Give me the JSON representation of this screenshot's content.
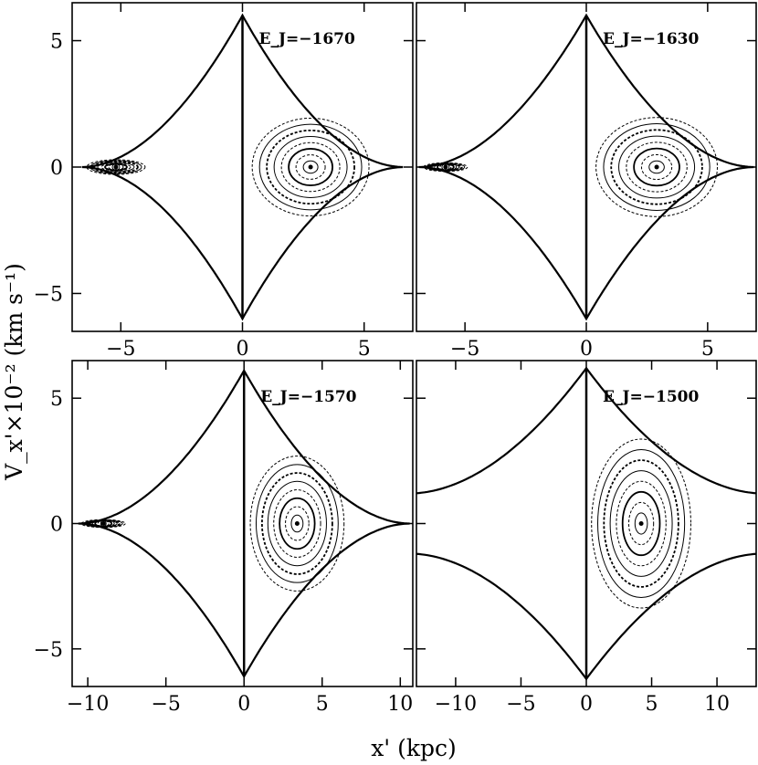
{
  "figure": {
    "ylabel": "V_x'×10⁻² (km s⁻¹)",
    "xlabel": "x' (kpc)"
  },
  "chart_data": [
    {
      "type": "scatter",
      "panel": "top-left",
      "annotation": "E_J=−1670",
      "xlim": [
        -7.0,
        7.0
      ],
      "ylim": [
        -6.5,
        6.5
      ],
      "xticks": [
        -5,
        0,
        5
      ],
      "yticks": [
        -5,
        0,
        5
      ],
      "xtick_labels_shown": true,
      "ytick_labels_shown": true,
      "boundary": {
        "x_extent": 6.6,
        "v_peak": 6.0,
        "v_at_x_edge": 0.0
      },
      "islands": [
        {
          "x": -5.2,
          "v": 0.0
        },
        {
          "x": 2.8,
          "v": 0.0
        }
      ],
      "grid": false,
      "legend": "none"
    },
    {
      "type": "scatter",
      "panel": "top-right",
      "annotation": "E_J=−1630",
      "xlim": [
        -7.0,
        7.0
      ],
      "ylim": [
        -6.5,
        6.5
      ],
      "xticks": [
        -5,
        0,
        5
      ],
      "yticks": [
        -5,
        0,
        5
      ],
      "xtick_labels_shown": true,
      "ytick_labels_shown": false,
      "boundary": {
        "x_extent": 6.9,
        "v_peak": 6.0,
        "v_at_x_edge": 0.0
      },
      "islands": [
        {
          "x": -5.8,
          "v": 0.0
        },
        {
          "x": 2.9,
          "v": 0.0
        }
      ],
      "grid": false,
      "legend": "none"
    },
    {
      "type": "scatter",
      "panel": "bottom-left",
      "annotation": "E_J=−1570",
      "xlim": [
        -11.0,
        10.8
      ],
      "ylim": [
        -6.5,
        6.5
      ],
      "xticks": [
        -10,
        -5,
        0,
        5,
        10
      ],
      "yticks": [
        -5,
        0,
        5
      ],
      "xtick_labels_shown": true,
      "ytick_labels_shown": true,
      "boundary": {
        "x_extent": 10.6,
        "v_peak": 6.1,
        "v_at_x_edge": 0.0
      },
      "islands": [
        {
          "x": -9.0,
          "v": 0.0
        },
        {
          "x": 3.4,
          "v": 0.0
        }
      ],
      "grid": false,
      "legend": "none"
    },
    {
      "type": "scatter",
      "panel": "bottom-right",
      "annotation": "E_J=−1500",
      "xlim": [
        -13.0,
        13.0
      ],
      "ylim": [
        -6.5,
        6.5
      ],
      "xticks": [
        -10,
        -5,
        0,
        5,
        10
      ],
      "yticks": [
        -5,
        0,
        5
      ],
      "xtick_labels_shown": true,
      "ytick_labels_shown": false,
      "boundary": {
        "x_extent": 13.5,
        "v_peak": 6.2,
        "v_at_x_edge": 1.2
      },
      "islands": [
        {
          "x": 4.2,
          "v": 0.0
        }
      ],
      "grid": false,
      "legend": "none"
    }
  ]
}
